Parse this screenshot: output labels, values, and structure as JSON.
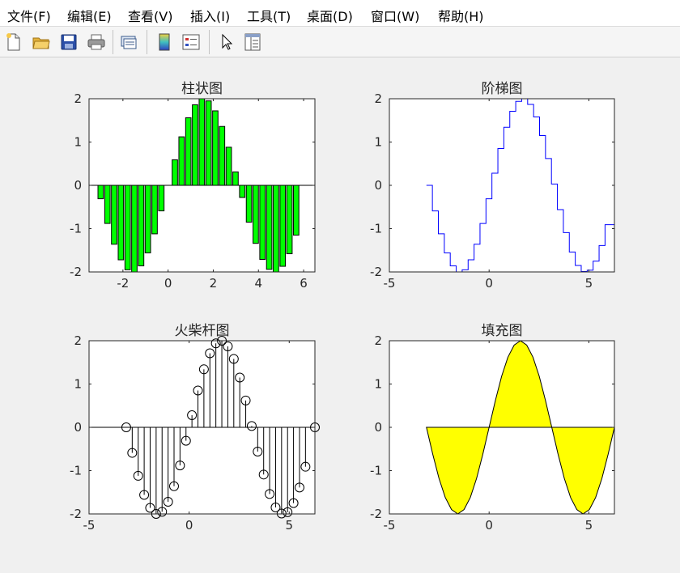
{
  "menu": [
    "文件(F)",
    "编辑(E)",
    "查看(V)",
    "插入(I)",
    "工具(T)",
    "桌面(D)",
    "窗口(W)",
    "帮助(H)"
  ],
  "toolbar": [
    {
      "name": "new-figure",
      "icon": "new-file-icon"
    },
    {
      "name": "open-file",
      "icon": "open-folder-icon"
    },
    {
      "name": "save",
      "icon": "save-icon"
    },
    {
      "name": "print",
      "icon": "print-icon"
    },
    {
      "name": "link-plot",
      "icon": "link-plot-icon"
    },
    {
      "name": "insert-colorbar",
      "icon": "colorbar-icon"
    },
    {
      "name": "insert-legend",
      "icon": "legend-icon"
    },
    {
      "name": "edit-plot",
      "icon": "pointer-icon"
    },
    {
      "name": "property-inspector",
      "icon": "property-inspector-icon"
    }
  ],
  "colors": {
    "bar": "#00ff00",
    "stairs": "#0000ff",
    "fill": "#ffff00",
    "stem": "#000000"
  },
  "chart_data": [
    {
      "type": "bar",
      "title": "柱状图",
      "x": [
        -2.985,
        -2.686,
        -2.388,
        -2.09,
        -1.791,
        -1.493,
        -1.194,
        -0.896,
        -0.597,
        -0.299,
        0.0,
        0.299,
        0.597,
        0.896,
        1.194,
        1.493,
        1.791,
        2.09,
        2.388,
        2.686,
        2.985,
        3.283,
        3.582,
        3.88,
        4.179,
        4.477,
        4.776,
        5.074,
        5.373,
        5.671
      ],
      "values": [
        -0.31,
        -0.88,
        -1.36,
        -1.72,
        -1.95,
        -2.0,
        -1.86,
        -1.56,
        -1.12,
        -0.59,
        0.0,
        0.59,
        1.12,
        1.56,
        1.86,
        2.0,
        1.95,
        1.72,
        1.36,
        0.88,
        0.31,
        -0.28,
        -0.85,
        -1.34,
        -1.71,
        -1.94,
        -2.0,
        -1.87,
        -1.58,
        -1.15
      ],
      "xlim": [
        -3.5,
        6.5
      ],
      "ylim": [
        -2,
        2
      ],
      "xticks": [
        -2,
        0,
        2,
        4,
        6
      ],
      "yticks": [
        -2,
        -1,
        0,
        1,
        2
      ],
      "baseline": 0
    },
    {
      "type": "line",
      "style": "stairs",
      "title": "阶梯图",
      "x": [
        -3.142,
        -2.843,
        -2.545,
        -2.246,
        -1.948,
        -1.649,
        -1.351,
        -1.052,
        -0.754,
        -0.456,
        -0.157,
        0.141,
        0.44,
        0.738,
        1.037,
        1.335,
        1.634,
        1.932,
        2.231,
        2.529,
        2.827,
        3.126,
        3.424,
        3.723,
        4.021,
        4.32,
        4.618,
        4.917,
        5.215,
        5.514,
        5.812
      ],
      "y": [
        0.0,
        -0.59,
        -1.12,
        -1.56,
        -1.86,
        -2.0,
        -1.95,
        -1.72,
        -1.36,
        -0.88,
        -0.31,
        0.28,
        0.85,
        1.34,
        1.71,
        1.94,
        2.0,
        1.87,
        1.58,
        1.15,
        0.62,
        0.03,
        -0.56,
        -1.09,
        -1.54,
        -1.85,
        -1.99,
        -1.96,
        -1.75,
        -1.39,
        -0.91
      ],
      "xlim": [
        -5,
        6.283
      ],
      "ylim": [
        -2,
        2
      ],
      "xticks": [
        -5,
        0,
        5
      ],
      "yticks": [
        -2,
        -1,
        0,
        1,
        2
      ]
    },
    {
      "type": "scatter",
      "style": "stem",
      "title": "火柴杆图",
      "x": [
        -3.142,
        -2.843,
        -2.545,
        -2.246,
        -1.948,
        -1.649,
        -1.351,
        -1.052,
        -0.754,
        -0.456,
        -0.157,
        0.141,
        0.44,
        0.738,
        1.037,
        1.335,
        1.634,
        1.932,
        2.231,
        2.529,
        2.827,
        3.126,
        3.424,
        3.723,
        4.021,
        4.32,
        4.618,
        4.917,
        5.215,
        5.514,
        5.812,
        6.283
      ],
      "y": [
        0.0,
        -0.59,
        -1.12,
        -1.56,
        -1.86,
        -2.0,
        -1.95,
        -1.72,
        -1.36,
        -0.88,
        -0.31,
        0.28,
        0.85,
        1.34,
        1.71,
        1.94,
        2.0,
        1.87,
        1.58,
        1.15,
        0.62,
        0.03,
        -0.56,
        -1.09,
        -1.54,
        -1.85,
        -1.99,
        -1.96,
        -1.75,
        -1.39,
        -0.91,
        0.0
      ],
      "xlim": [
        -5,
        6.283
      ],
      "ylim": [
        -2,
        2
      ],
      "xticks": [
        -5,
        0,
        5
      ],
      "yticks": [
        -2,
        -1,
        0,
        1,
        2
      ]
    },
    {
      "type": "area",
      "title": "填充图",
      "x": [
        -3.142,
        -2.827,
        -2.513,
        -2.199,
        -1.885,
        -1.571,
        -1.257,
        -0.942,
        -0.628,
        -0.314,
        0.0,
        0.314,
        0.628,
        0.942,
        1.257,
        1.571,
        1.885,
        2.199,
        2.513,
        2.827,
        3.142,
        3.456,
        3.77,
        4.084,
        4.398,
        4.712,
        5.027,
        5.341,
        5.655,
        5.969,
        6.283
      ],
      "y": [
        0.0,
        -0.62,
        -1.18,
        -1.62,
        -1.9,
        -2.0,
        -1.9,
        -1.62,
        -1.18,
        -0.62,
        0.0,
        0.62,
        1.18,
        1.62,
        1.9,
        2.0,
        1.9,
        1.62,
        1.18,
        0.62,
        0.0,
        -0.62,
        -1.18,
        -1.62,
        -1.9,
        -2.0,
        -1.9,
        -1.62,
        -1.18,
        -0.62,
        0.0
      ],
      "xlim": [
        -5,
        6.283
      ],
      "ylim": [
        -2,
        2
      ],
      "xticks": [
        -5,
        0,
        5
      ],
      "yticks": [
        -2,
        -1,
        0,
        1,
        2
      ]
    }
  ]
}
